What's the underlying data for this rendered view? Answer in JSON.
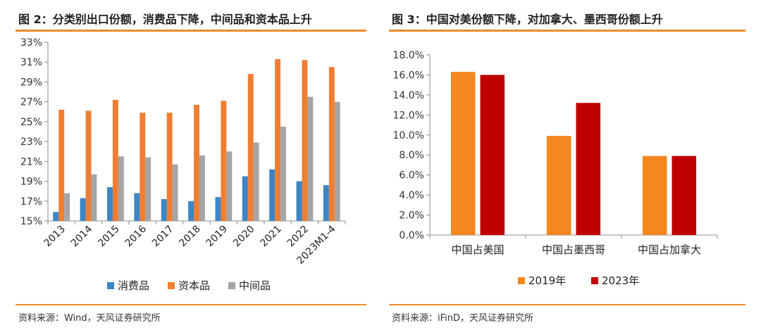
{
  "left": {
    "title": "图 2：分类别出口份额，消费品下降，中间品和资本品上升",
    "source": "资料来源：Wind，天风证券研究所",
    "chart_data": {
      "type": "bar",
      "categories": [
        "2013",
        "2014",
        "2015",
        "2016",
        "2017",
        "2018",
        "2019",
        "2020",
        "2021",
        "2022",
        "2023M1-4"
      ],
      "ylim": [
        15,
        33
      ],
      "yticks": [
        15,
        17,
        19,
        21,
        23,
        25,
        27,
        29,
        31,
        33
      ],
      "ytick_labels": [
        "15%",
        "17%",
        "19%",
        "21%",
        "23%",
        "25%",
        "27%",
        "29%",
        "31%",
        "33%"
      ],
      "series": [
        {
          "name": "消费品",
          "color": "#3d85c6",
          "values": [
            15.9,
            17.3,
            18.4,
            17.8,
            17.2,
            17.0,
            17.4,
            19.5,
            20.2,
            19.0,
            18.6
          ]
        },
        {
          "name": "资本品",
          "color": "#ef7e32",
          "values": [
            26.2,
            26.1,
            27.2,
            25.9,
            25.9,
            26.7,
            27.1,
            29.8,
            31.3,
            31.2,
            30.5
          ]
        },
        {
          "name": "中间品",
          "color": "#a5a5a5",
          "values": [
            17.8,
            19.7,
            21.5,
            21.4,
            20.7,
            21.6,
            22.0,
            22.9,
            24.5,
            27.5,
            27.0
          ]
        }
      ],
      "legend": "bottom",
      "grid": false
    }
  },
  "right": {
    "title": "图 3：中国对美份额下降，对加拿大、墨西哥份额上升",
    "source": "资料来源：iFinD，天风证券研究所",
    "chart_data": {
      "type": "bar",
      "categories": [
        "中国占美国",
        "中国占墨西哥",
        "中国占加拿大"
      ],
      "ylim": [
        0,
        18
      ],
      "yticks": [
        0,
        2,
        4,
        6,
        8,
        10,
        12,
        14,
        16,
        18
      ],
      "ytick_labels": [
        "0.0%",
        "2.0%",
        "4.0%",
        "6.0%",
        "8.0%",
        "10.0%",
        "12.0%",
        "14.0%",
        "16.0%",
        "18.0%"
      ],
      "series": [
        {
          "name": "2019年",
          "color": "#f5871f",
          "values": [
            16.3,
            9.9,
            7.9
          ]
        },
        {
          "name": "2023年",
          "color": "#c00000",
          "values": [
            16.0,
            13.2,
            7.9
          ]
        }
      ],
      "legend": "bottom",
      "grid": false
    }
  }
}
